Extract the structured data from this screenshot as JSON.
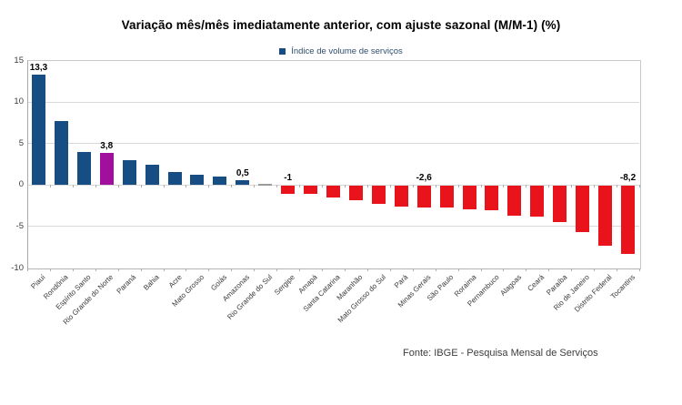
{
  "title": "Variação mês/mês imediatamente anterior, com ajuste sazonal (M/M-1) (%)",
  "legend": {
    "label": "Índice de volume de serviços",
    "swatch_color": "#164E84"
  },
  "footer": "Fonte: IBGE - Pesquisa Mensal de Serviços",
  "chart_data": {
    "type": "bar",
    "title": "Variação mês/mês imediatamente anterior, com ajuste sazonal (M/M-1) (%)",
    "series_name": "Índice de volume de serviços",
    "categories": [
      "Piauí",
      "Rondônia",
      "Espírito Santo",
      "Rio Grande do Norte",
      "Paraná",
      "Bahia",
      "Acre",
      "Mato Grosso",
      "Goiás",
      "Amazonas",
      "Rio Grande do Sul",
      "Sergipe",
      "Amapá",
      "Santa Catarina",
      "Maranhão",
      "Mato Grosso do Sul",
      "Pará",
      "Minas Gerais",
      "São Paulo",
      "Roraima",
      "Pernambuco",
      "Alagoas",
      "Ceará",
      "Paraíba",
      "Rio de Janeiro",
      "Distrito Federal",
      "Tocantins"
    ],
    "values": [
      13.3,
      7.6,
      3.9,
      3.8,
      2.9,
      2.4,
      1.5,
      1.2,
      1.0,
      0.5,
      0.0,
      -1.0,
      -1.0,
      -1.4,
      -1.8,
      -2.2,
      -2.5,
      -2.6,
      -2.7,
      -2.9,
      -3.0,
      -3.6,
      -3.7,
      -4.4,
      -5.6,
      -7.3,
      -8.2
    ],
    "point_labels": [
      "13,3",
      null,
      null,
      "3,8",
      null,
      null,
      null,
      null,
      null,
      "0,5",
      null,
      "-1",
      null,
      null,
      null,
      null,
      null,
      "-2,6",
      null,
      null,
      null,
      null,
      null,
      null,
      null,
      null,
      "-8,2"
    ],
    "ylim": [
      -10,
      15
    ],
    "yticks": [
      15,
      10,
      5,
      0,
      -5,
      -10
    ],
    "grid": true,
    "legend_position": "top",
    "colors": {
      "positive": "#164E84",
      "negative": "#E8131B",
      "highlight": "#A0109C",
      "zero_bar": "#9B9B9B",
      "gridline": "#D9D9D9"
    },
    "highlight_index": 3,
    "xlabel": "",
    "ylabel": "",
    "source": "Fonte: IBGE - Pesquisa Mensal de Serviços"
  }
}
